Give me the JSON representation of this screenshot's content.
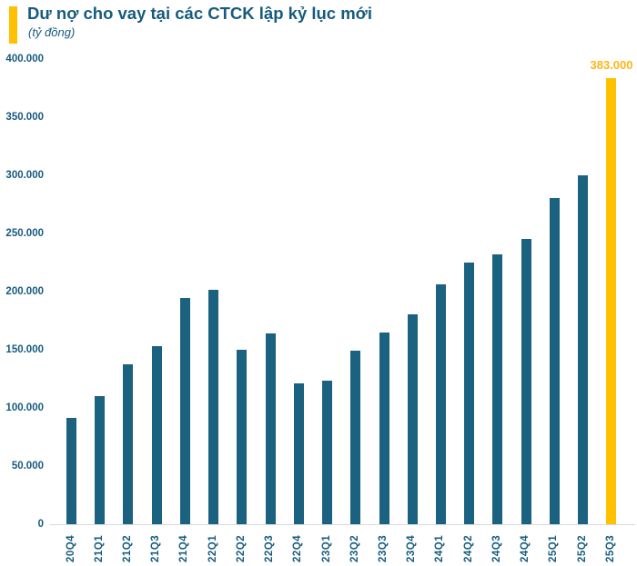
{
  "header": {
    "title": "Dư nợ cho vay tại các CTCK lập kỷ lục mới",
    "subtitle": "(tỷ đồng)"
  },
  "chart_data": {
    "type": "bar",
    "title": "Dư nợ cho vay tại các CTCK lập kỷ lục mới",
    "subtitle": "(tỷ đồng)",
    "unit": "tỷ đồng",
    "categories": [
      "20Q4",
      "21Q1",
      "21Q2",
      "21Q3",
      "21Q4",
      "22Q1",
      "22Q2",
      "22Q3",
      "22Q4",
      "23Q1",
      "23Q2",
      "23Q3",
      "23Q4",
      "24Q1",
      "24Q2",
      "24Q3",
      "24Q4",
      "25Q1",
      "25Q2",
      "25Q3"
    ],
    "values": [
      91000,
      110000,
      137000,
      153000,
      194000,
      201000,
      150000,
      164000,
      121000,
      123000,
      149000,
      165000,
      180000,
      206000,
      225000,
      232000,
      245000,
      280000,
      300000,
      383000
    ],
    "ylim": [
      0,
      400000
    ],
    "ytick_step": 50000,
    "ytick_labels": [
      "0",
      "50.000",
      "100.000",
      "150.000",
      "200.000",
      "250.000",
      "300.000",
      "350.000",
      "400.000"
    ],
    "grid": false,
    "legend": false,
    "highlight_index": 19,
    "highlight_label": "383.000",
    "colors": {
      "bar": "#1B6280",
      "highlight": "#FFC000",
      "text": "#175B7E",
      "axis_line": "#D9D9D9",
      "data_label": "#FDB515"
    }
  }
}
